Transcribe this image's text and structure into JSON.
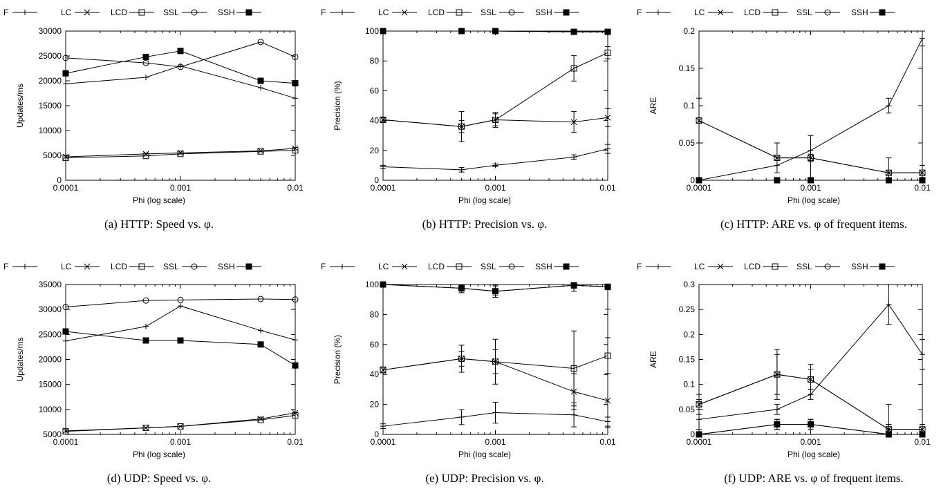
{
  "figure": {
    "captions": [
      "(a) HTTP: Speed vs. φ.",
      "(b) HTTP: Precision vs. φ.",
      "(c) HTTP: ARE vs. φ of frequent items.",
      "(d) UDP: Speed vs. φ.",
      "(e) UDP: Precision vs. φ.",
      "(f) UDP: ARE vs. φ of frequent items."
    ]
  },
  "chart_data": [
    {
      "type": "line",
      "caption": "(a) HTTP: Speed vs. φ.",
      "xlabel": "Phi (log scale)",
      "ylabel": "Updates/ms",
      "xscale": "log",
      "xlim": [
        0.0001,
        0.01
      ],
      "ylim": [
        0,
        30000
      ],
      "xticks": [
        0.0001,
        0.001,
        0.01
      ],
      "xticklabels": [
        "0.0001",
        "0.001",
        "0.01"
      ],
      "yticks": [
        0,
        5000,
        10000,
        15000,
        20000,
        25000,
        30000
      ],
      "yticklabels": [
        "0",
        "5000",
        "10000",
        "15000",
        "20000",
        "25000",
        "30000"
      ],
      "legend": [
        "F",
        "LC",
        "LCD",
        "SSL",
        "SSH"
      ],
      "legend_position": "top",
      "x": [
        0.0001,
        0.0005,
        0.001,
        0.005,
        0.01
      ],
      "series": [
        {
          "name": "F",
          "marker": "plus",
          "values": [
            19400,
            20700,
            23000,
            18600,
            16500
          ]
        },
        {
          "name": "LC",
          "marker": "cross",
          "values": [
            4700,
            5300,
            5500,
            5900,
            6400
          ]
        },
        {
          "name": "LCD",
          "marker": "square",
          "values": [
            4500,
            4900,
            5300,
            5800,
            6000
          ]
        },
        {
          "name": "SSL",
          "marker": "circle",
          "values": [
            24600,
            23600,
            22800,
            27800,
            24800
          ]
        },
        {
          "name": "SSH",
          "marker": "filled-square",
          "values": [
            21500,
            24800,
            26000,
            20000,
            19500
          ]
        }
      ]
    },
    {
      "type": "line",
      "caption": "(b) HTTP: Precision vs. φ.",
      "xlabel": "Phi (log scale)",
      "ylabel": "Precision (%)",
      "xscale": "log",
      "xlim": [
        0.0001,
        0.01
      ],
      "ylim": [
        0,
        100
      ],
      "xticks": [
        0.0001,
        0.001,
        0.01
      ],
      "xticklabels": [
        "0.0001",
        "0.001",
        "0.01"
      ],
      "yticks": [
        0,
        20,
        40,
        60,
        80,
        100
      ],
      "yticklabels": [
        "0",
        "20",
        "40",
        "60",
        "80",
        "100"
      ],
      "legend": [
        "F",
        "LC",
        "LCD",
        "SSL",
        "SSH"
      ],
      "legend_position": "top",
      "x": [
        0.0001,
        0.0005,
        0.001,
        0.005,
        0.01
      ],
      "series": [
        {
          "name": "F",
          "marker": "plus",
          "values": [
            9,
            7,
            10,
            15.5,
            21
          ],
          "errors": [
            1,
            1.5,
            1,
            1.5,
            3
          ]
        },
        {
          "name": "LC",
          "marker": "cross",
          "values": [
            40.5,
            36,
            40.5,
            39,
            42
          ],
          "errors": [
            1.5,
            4,
            4,
            7,
            6
          ]
        },
        {
          "name": "LCD",
          "marker": "square",
          "values": [
            40.5,
            36,
            40.5,
            75,
            85.5
          ],
          "errors": [
            1.5,
            10,
            5,
            8.5,
            4
          ]
        },
        {
          "name": "SSL",
          "marker": "circle",
          "values": [
            100,
            100,
            100,
            99.5,
            99.5
          ],
          "errors": [
            0.5,
            0.5,
            0.5,
            1.5,
            1.5
          ]
        },
        {
          "name": "SSH",
          "marker": "filled-square",
          "values": [
            100,
            100,
            100,
            99.5,
            99.5
          ],
          "errors": [
            0.5,
            0.5,
            0.5,
            1,
            1
          ]
        }
      ]
    },
    {
      "type": "line",
      "caption": "(c) HTTP: ARE vs. φ of frequent items.",
      "xlabel": "Phi (log scale)",
      "ylabel": "ARE",
      "xscale": "log",
      "xlim": [
        0.0001,
        0.01
      ],
      "ylim": [
        0,
        0.2
      ],
      "xticks": [
        0.0001,
        0.001,
        0.01
      ],
      "xticklabels": [
        "0.0001",
        "0.001",
        "0.01"
      ],
      "yticks": [
        0,
        0.05,
        0.1,
        0.15,
        0.2
      ],
      "yticklabels": [
        "0",
        "0.05",
        "0.1",
        "0.15",
        "0.2"
      ],
      "legend": [
        "F",
        "LC",
        "LCD",
        "SSL",
        "SSH"
      ],
      "legend_position": "top",
      "x": [
        0.0001,
        0.0005,
        0.001,
        0.005,
        0.01
      ],
      "series": [
        {
          "name": "F",
          "marker": "plus",
          "values": [
            0,
            0.02,
            0.04,
            0.1,
            0.19
          ],
          "errors": [
            0,
            0,
            0,
            0.01,
            0.01
          ]
        },
        {
          "name": "LC",
          "marker": "cross",
          "values": [
            0.08,
            0.03,
            0.03,
            0.01,
            0.01
          ],
          "errors": [
            0.03,
            0.02,
            0.03,
            0.02,
            0.01
          ]
        },
        {
          "name": "LCD",
          "marker": "square",
          "values": [
            0.08,
            0.03,
            0.03,
            0.01,
            0.01
          ],
          "errors": [
            0,
            0,
            0.005,
            0,
            0
          ]
        },
        {
          "name": "SSL",
          "marker": "circle",
          "values": [
            0,
            0,
            0,
            0,
            0
          ],
          "errors": [
            0,
            0,
            0,
            0,
            0
          ]
        },
        {
          "name": "SSH",
          "marker": "filled-square",
          "values": [
            0,
            0,
            0,
            0,
            0
          ],
          "errors": [
            0,
            0,
            0,
            0,
            0
          ]
        }
      ]
    },
    {
      "type": "line",
      "caption": "(d) UDP: Speed vs. φ.",
      "xlabel": "Phi (log scale)",
      "ylabel": "Updates/ms",
      "xscale": "log",
      "xlim": [
        0.0001,
        0.01
      ],
      "ylim": [
        5000,
        35000
      ],
      "xticks": [
        0.0001,
        0.001,
        0.01
      ],
      "xticklabels": [
        "0.0001",
        "0.001",
        "0.01"
      ],
      "yticks": [
        5000,
        10000,
        15000,
        20000,
        25000,
        30000,
        35000
      ],
      "yticklabels": [
        "5000",
        "10000",
        "15000",
        "20000",
        "25000",
        "30000",
        "35000"
      ],
      "legend": [
        "F",
        "LC",
        "LCD",
        "SSL",
        "SSH"
      ],
      "legend_position": "top",
      "x": [
        0.0001,
        0.0005,
        0.001,
        0.005,
        0.01
      ],
      "series": [
        {
          "name": "F",
          "marker": "plus",
          "values": [
            23700,
            26600,
            30700,
            25800,
            23900
          ]
        },
        {
          "name": "LC",
          "marker": "cross",
          "values": [
            5700,
            6300,
            6600,
            8100,
            9300
          ]
        },
        {
          "name": "LCD",
          "marker": "square",
          "values": [
            5600,
            6300,
            6600,
            7900,
            8800
          ]
        },
        {
          "name": "SSL",
          "marker": "circle",
          "values": [
            30500,
            31800,
            31900,
            32100,
            32000
          ]
        },
        {
          "name": "SSH",
          "marker": "filled-square",
          "values": [
            25600,
            23800,
            23800,
            23000,
            18800
          ]
        }
      ]
    },
    {
      "type": "line",
      "caption": "(e) UDP: Precision vs. φ.",
      "xlabel": "Phi (log scale)",
      "ylabel": "Precision (%)",
      "xscale": "log",
      "xlim": [
        0.0001,
        0.01
      ],
      "ylim": [
        0,
        100
      ],
      "xticks": [
        0.0001,
        0.001,
        0.01
      ],
      "xticklabels": [
        "0.0001",
        "0.001",
        "0.01"
      ],
      "yticks": [
        0,
        20,
        40,
        60,
        80,
        100
      ],
      "yticklabels": [
        "0",
        "20",
        "40",
        "60",
        "80",
        "100"
      ],
      "legend": [
        "F",
        "LC",
        "LCD",
        "SSL",
        "SSH"
      ],
      "legend_position": "top",
      "x": [
        0.0001,
        0.0005,
        0.001,
        0.005,
        0.01
      ],
      "series": [
        {
          "name": "F",
          "marker": "plus",
          "values": [
            5.5,
            11.5,
            14.5,
            13,
            8.5
          ],
          "errors": [
            1.5,
            5,
            7,
            8,
            3
          ]
        },
        {
          "name": "LC",
          "marker": "cross",
          "values": [
            43,
            50.5,
            48.5,
            28.5,
            22.5
          ],
          "errors": [
            2,
            9,
            15,
            12,
            18
          ]
        },
        {
          "name": "LCD",
          "marker": "square",
          "values": [
            43,
            50.5,
            48.5,
            44,
            52.5
          ],
          "errors": [
            2,
            5,
            8,
            25,
            12
          ]
        },
        {
          "name": "SSL",
          "marker": "circle",
          "values": [
            100,
            97.5,
            95.5,
            99.5,
            98.5
          ],
          "errors": [
            1,
            3,
            4,
            4,
            15
          ]
        },
        {
          "name": "SSH",
          "marker": "filled-square",
          "values": [
            100,
            97.5,
            95.5,
            99.5,
            98.5
          ],
          "errors": [
            0.5,
            2,
            3,
            2,
            2
          ]
        }
      ]
    },
    {
      "type": "line",
      "caption": "(f) UDP: ARE vs. φ of frequent items.",
      "xlabel": "Phi (log scale)",
      "ylabel": "ARE",
      "xscale": "log",
      "xlim": [
        0.0001,
        0.01
      ],
      "ylim": [
        0,
        0.3
      ],
      "xticks": [
        0.0001,
        0.001,
        0.01
      ],
      "xticklabels": [
        "0.0001",
        "0.001",
        "0.01"
      ],
      "yticks": [
        0,
        0.05,
        0.1,
        0.15,
        0.2,
        0.25,
        0.3
      ],
      "yticklabels": [
        "0",
        "0.05",
        "0.1",
        "0.15",
        "0.2",
        "0.25",
        "0.3"
      ],
      "legend": [
        "F",
        "LC",
        "LCD",
        "SSL",
        "SSH"
      ],
      "legend_position": "top",
      "x": [
        0.0001,
        0.0005,
        0.001,
        0.005,
        0.01
      ],
      "series": [
        {
          "name": "F",
          "marker": "plus",
          "values": [
            0.03,
            0.05,
            0.08,
            0.26,
            0.16
          ],
          "errors": [
            0,
            0.01,
            0.01,
            0.04,
            0.03
          ]
        },
        {
          "name": "LC",
          "marker": "cross",
          "values": [
            0.06,
            0.12,
            0.11,
            0.01,
            0.01
          ],
          "errors": [
            0.02,
            0.05,
            0.03,
            0.05,
            0.01
          ]
        },
        {
          "name": "LCD",
          "marker": "square",
          "values": [
            0.06,
            0.12,
            0.11,
            0.01,
            0.01
          ],
          "errors": [
            0.01,
            0.04,
            0.02,
            0.01,
            0
          ]
        },
        {
          "name": "SSL",
          "marker": "circle",
          "values": [
            0,
            0.02,
            0.02,
            0,
            0
          ],
          "errors": [
            0,
            0.01,
            0.01,
            0,
            0
          ]
        },
        {
          "name": "SSH",
          "marker": "filled-square",
          "values": [
            0,
            0.02,
            0.02,
            0,
            0
          ],
          "errors": [
            0.01,
            0.01,
            0.01,
            0.01,
            0
          ]
        }
      ]
    }
  ]
}
